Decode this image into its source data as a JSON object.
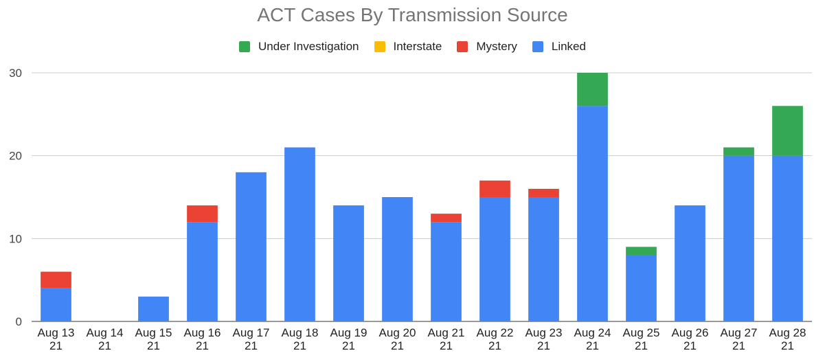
{
  "chart_data": {
    "type": "bar",
    "stacked": true,
    "title": "ACT Cases By Transmission Source",
    "categories": [
      [
        "Aug 13",
        "21"
      ],
      [
        "Aug 14",
        "21"
      ],
      [
        "Aug 15",
        "21"
      ],
      [
        "Aug 16",
        "21"
      ],
      [
        "Aug 17",
        "21"
      ],
      [
        "Aug 18",
        "21"
      ],
      [
        "Aug 19",
        "21"
      ],
      [
        "Aug 20",
        "21"
      ],
      [
        "Aug 21",
        "21"
      ],
      [
        "Aug 22",
        "21"
      ],
      [
        "Aug 23",
        "21"
      ],
      [
        "Aug 24",
        "21"
      ],
      [
        "Aug 25",
        "21"
      ],
      [
        "Aug 26",
        "21"
      ],
      [
        "Aug 27",
        "21"
      ],
      [
        "Aug 28",
        "21"
      ]
    ],
    "series": [
      {
        "name": "Linked",
        "color": "#4285f4",
        "values": [
          4,
          0,
          3,
          12,
          18,
          21,
          14,
          15,
          12,
          15,
          15,
          26,
          8,
          14,
          20,
          20
        ]
      },
      {
        "name": "Mystery",
        "color": "#ea4335",
        "values": [
          2,
          0,
          0,
          2,
          0,
          0,
          0,
          0,
          1,
          2,
          1,
          0,
          0,
          0,
          0,
          0
        ]
      },
      {
        "name": "Interstate",
        "color": "#fbbc04",
        "values": [
          0,
          0,
          0,
          0,
          0,
          0,
          0,
          0,
          0,
          0,
          0,
          0,
          0,
          0,
          0,
          0
        ]
      },
      {
        "name": "Under Investigation",
        "color": "#34a853",
        "values": [
          0,
          0,
          0,
          0,
          0,
          0,
          0,
          0,
          0,
          0,
          0,
          4,
          1,
          0,
          1,
          6
        ]
      }
    ],
    "legend_order": [
      "Under Investigation",
      "Interstate",
      "Mystery",
      "Linked"
    ],
    "legend_position": "top",
    "ylim": [
      0,
      30
    ],
    "yticks": [
      "0",
      "10",
      "20",
      "30"
    ],
    "grid": true,
    "xlabel": "",
    "ylabel": ""
  }
}
